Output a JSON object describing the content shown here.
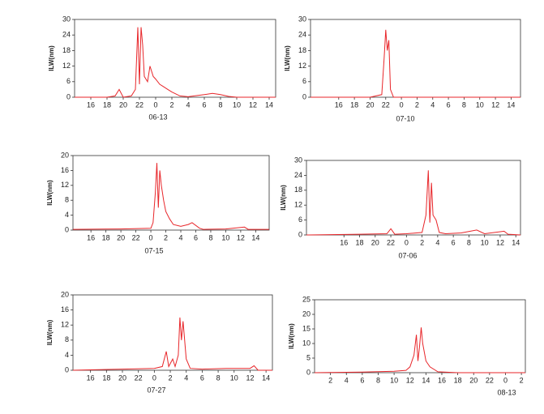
{
  "chart_data": [
    {
      "type": "line",
      "ylabel": "ILW(nm)",
      "xlabel": "06-13",
      "color": "#e8262a",
      "xlim": [
        14,
        38.8
      ],
      "ylim": [
        0,
        30
      ],
      "yticks": [
        0,
        6,
        12,
        18,
        24,
        30
      ],
      "xticks": [
        16,
        18,
        20,
        22,
        {
          "value": 24,
          "label": "0"
        },
        {
          "value": 26,
          "label": "2"
        },
        {
          "value": 28,
          "label": "4"
        },
        {
          "value": 30,
          "label": "6"
        },
        {
          "value": 32,
          "label": "8"
        },
        {
          "value": 34,
          "label": "10"
        },
        {
          "value": 36,
          "label": "12"
        },
        {
          "value": 38,
          "label": "14"
        }
      ],
      "x": [
        14,
        18,
        19,
        19.5,
        20,
        21,
        21.5,
        21.8,
        22,
        22.2,
        22.4,
        22.6,
        23,
        23.3,
        23.7,
        24,
        24.5,
        25,
        25.5,
        26,
        27,
        28,
        30,
        31,
        32,
        33,
        34,
        36,
        38.8
      ],
      "values": [
        0,
        0,
        0.5,
        3,
        0,
        0.5,
        3,
        27,
        5,
        27,
        20,
        8,
        6,
        12,
        8,
        7,
        5,
        4,
        3,
        2,
        0.5,
        0.2,
        1,
        1.5,
        1,
        0.3,
        0,
        0,
        0
      ]
    },
    {
      "type": "line",
      "ylabel": "ILW(nm)",
      "xlabel": "07-10",
      "color": "#e8262a",
      "xlim": [
        12.4,
        39.2
      ],
      "ylim": [
        0,
        30
      ],
      "yticks": [
        0,
        6,
        12,
        18,
        24,
        30
      ],
      "xticks": [
        16,
        18,
        20,
        22,
        {
          "value": 24,
          "label": "0"
        },
        {
          "value": 26,
          "label": "2"
        },
        {
          "value": 28,
          "label": "4"
        },
        {
          "value": 30,
          "label": "6"
        },
        {
          "value": 32,
          "label": "8"
        },
        {
          "value": 34,
          "label": "10"
        },
        {
          "value": 36,
          "label": "12"
        },
        {
          "value": 38,
          "label": "14"
        }
      ],
      "x": [
        12.4,
        20,
        21.5,
        21.8,
        22,
        22.2,
        22.4,
        22.6,
        23,
        39.2
      ],
      "values": [
        0,
        0,
        1,
        15,
        26,
        18,
        22,
        3,
        0,
        0
      ]
    },
    {
      "type": "line",
      "ylabel": "ILW(nm)",
      "xlabel": "07-15",
      "color": "#e8262a",
      "xlim": [
        13.6,
        39.8
      ],
      "ylim": [
        0,
        20
      ],
      "yticks": [
        0,
        4,
        8,
        12,
        16,
        20
      ],
      "xticks": [
        16,
        18,
        20,
        22,
        {
          "value": 24,
          "label": "0"
        },
        {
          "value": 26,
          "label": "2"
        },
        {
          "value": 28,
          "label": "4"
        },
        {
          "value": 30,
          "label": "6"
        },
        {
          "value": 32,
          "label": "8"
        },
        {
          "value": 34,
          "label": "10"
        },
        {
          "value": 36,
          "label": "12"
        },
        {
          "value": 38,
          "label": "14"
        }
      ],
      "x": [
        13.6,
        20,
        24,
        24.3,
        24.6,
        24.8,
        25,
        25.2,
        25.4,
        25.7,
        26,
        26.5,
        27,
        28,
        29,
        29.5,
        30.5,
        31,
        34,
        36.5,
        37,
        39.8
      ],
      "values": [
        0.2,
        0.3,
        0.5,
        2,
        10,
        18,
        6,
        16,
        12,
        8,
        5,
        3,
        1.5,
        1,
        1.5,
        2,
        0.5,
        0.2,
        0.3,
        0.8,
        0.2,
        0.2
      ]
    },
    {
      "type": "line",
      "ylabel": "ILW(nm)",
      "xlabel": "07-06",
      "color": "#e8262a",
      "xlim": [
        11.2,
        38.6
      ],
      "ylim": [
        0,
        30
      ],
      "yticks": [
        0,
        6,
        12,
        18,
        24,
        30
      ],
      "xticks": [
        16,
        18,
        20,
        22,
        {
          "value": 24,
          "label": "0"
        },
        {
          "value": 26,
          "label": "2"
        },
        {
          "value": 28,
          "label": "4"
        },
        {
          "value": 30,
          "label": "6"
        },
        {
          "value": 32,
          "label": "8"
        },
        {
          "value": 34,
          "label": "10"
        },
        {
          "value": 36,
          "label": "12"
        },
        {
          "value": 38,
          "label": "14"
        }
      ],
      "x": [
        11.2,
        18,
        21.5,
        22,
        22.5,
        24,
        26,
        26.5,
        26.8,
        27,
        27.2,
        27.4,
        27.8,
        28.2,
        29,
        31,
        33,
        34,
        36.5,
        37,
        38.6
      ],
      "values": [
        0,
        0.3,
        0.5,
        2.5,
        0.3,
        0.5,
        1,
        8,
        26,
        5,
        21,
        8,
        6,
        1,
        0.5,
        0.8,
        2,
        0.5,
        1.5,
        0.3,
        0
      ]
    },
    {
      "type": "line",
      "ylabel": "ILW(nm)",
      "xlabel": "07-27",
      "color": "#e8262a",
      "xlim": [
        13.8,
        38.8
      ],
      "ylim": [
        0,
        20
      ],
      "yticks": [
        0,
        4,
        8,
        12,
        16,
        20
      ],
      "xticks": [
        16,
        18,
        20,
        22,
        {
          "value": 24,
          "label": "0"
        },
        {
          "value": 26,
          "label": "2"
        },
        {
          "value": 28,
          "label": "4"
        },
        {
          "value": 30,
          "label": "6"
        },
        {
          "value": 32,
          "label": "8"
        },
        {
          "value": 34,
          "label": "10"
        },
        {
          "value": 36,
          "label": "12"
        },
        {
          "value": 38,
          "label": "14"
        }
      ],
      "x": [
        13.8,
        20,
        24,
        25,
        25.5,
        25.8,
        26.3,
        26.6,
        27,
        27.2,
        27.4,
        27.6,
        28,
        28.5,
        30,
        33,
        36,
        36.5,
        37,
        38.8
      ],
      "values": [
        0,
        0.3,
        0.5,
        1,
        5,
        1,
        3,
        1,
        4,
        14,
        8,
        13,
        3,
        0.5,
        0.3,
        0.5,
        0.5,
        1.2,
        0,
        0
      ]
    },
    {
      "type": "line",
      "ylabel": "ILW(nm)",
      "xlabel": "08-13",
      "color": "#e8262a",
      "xlim": [
        0,
        26.5
      ],
      "ylim": [
        0,
        25
      ],
      "yticks": [
        0,
        5,
        10,
        15,
        20,
        25
      ],
      "xticks": [
        2,
        4,
        6,
        8,
        10,
        12,
        14,
        16,
        18,
        20,
        22,
        {
          "value": 24,
          "label": "0"
        },
        {
          "value": 26,
          "label": "2"
        }
      ],
      "x": [
        0,
        6,
        10,
        11.5,
        12,
        12.5,
        12.8,
        13,
        13.2,
        13.4,
        13.6,
        14,
        14.5,
        15.5,
        18,
        26.5
      ],
      "values": [
        0,
        0.2,
        0.5,
        0.8,
        2,
        6,
        13,
        4,
        9,
        15.5,
        10,
        4,
        2,
        0.3,
        0,
        0
      ]
    }
  ]
}
